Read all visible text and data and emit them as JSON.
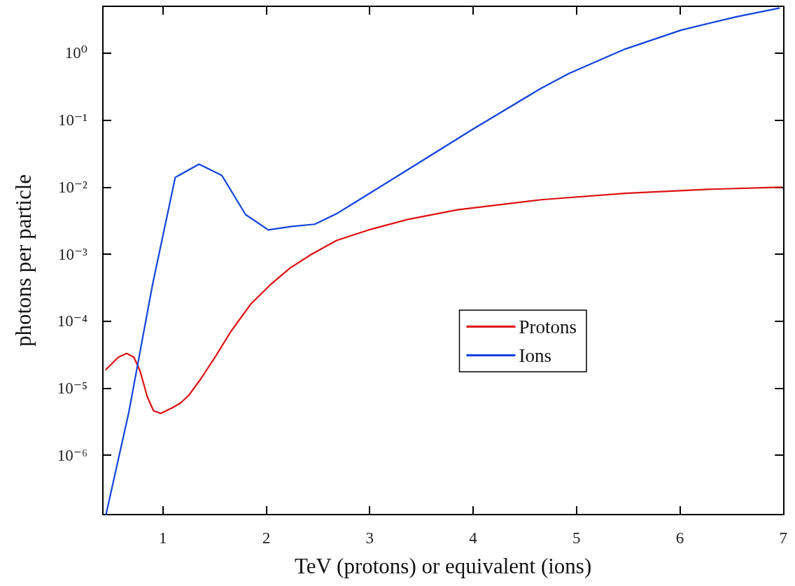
{
  "chart_data": {
    "type": "line",
    "xlabel": "TeV (protons) or equivalent (ions)",
    "ylabel": "photons per particle",
    "xlim": [
      0.42,
      7
    ],
    "xticks": [
      1,
      2,
      3,
      4,
      5,
      6,
      7
    ],
    "ylim": [
      1.3e-07,
      5
    ],
    "yticks": [
      {
        "value": 1e-06,
        "label": "10⁻⁶"
      },
      {
        "value": 1e-05,
        "label": "10⁻⁵"
      },
      {
        "value": 0.0001,
        "label": "10⁻⁴"
      },
      {
        "value": 0.001,
        "label": "10⁻³"
      },
      {
        "value": 0.01,
        "label": "10⁻²"
      },
      {
        "value": 0.1,
        "label": "10⁻¹"
      },
      {
        "value": 1,
        "label": "10⁰"
      }
    ],
    "log": "y",
    "grid": false,
    "legend": "right",
    "marker": "none",
    "line_style": "solid",
    "series": [
      {
        "name": "Protons",
        "color": "#dd1111",
        "x": [
          0.45,
          0.57,
          0.65,
          0.72,
          0.78,
          0.85,
          0.91,
          0.98,
          1.09,
          1.17,
          1.25,
          1.37,
          1.51,
          1.66,
          1.85,
          2.04,
          2.23,
          2.44,
          2.68,
          2.99,
          3.37,
          3.85,
          4.66,
          5.47,
          6.28,
          6.98
        ],
        "values": [
          1.9e-05,
          2.9e-05,
          3.3e-05,
          2.9e-05,
          1.8e-05,
          7.4e-06,
          4.6e-06,
          4.2e-06,
          5.1e-06,
          6e-06,
          7.8e-06,
          1.4e-05,
          3e-05,
          7.1e-05,
          0.00018,
          0.00035,
          0.00062,
          0.001,
          0.0016,
          0.0023,
          0.0033,
          0.0046,
          0.0065,
          0.0081,
          0.0093,
          0.01
        ]
      },
      {
        "name": "Ions",
        "color": "#1144dd",
        "x": [
          0.45,
          0.67,
          0.9,
          1.12,
          1.35,
          1.57,
          1.8,
          2.02,
          2.25,
          2.47,
          2.69,
          3.31,
          3.99,
          4.66,
          4.93,
          5.47,
          6.01,
          6.55,
          6.96
        ],
        "values": [
          1.3e-07,
          4.3e-06,
          0.00035,
          0.014,
          0.022,
          0.015,
          0.0039,
          0.0023,
          0.0026,
          0.0028,
          0.0041,
          0.016,
          0.072,
          0.3,
          0.5,
          1.15,
          2.2,
          3.5,
          4.7
        ]
      }
    ]
  }
}
